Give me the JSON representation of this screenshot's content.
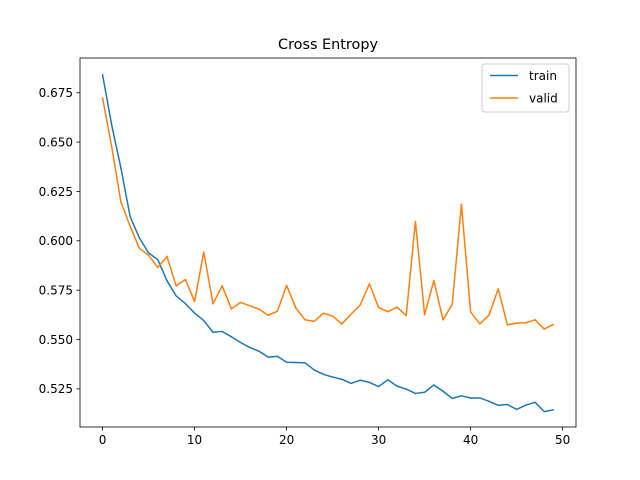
{
  "chart_data": {
    "type": "line",
    "title": "Cross Entropy",
    "xlabel": "",
    "ylabel": "",
    "xlim": [
      -2.45,
      51.45
    ],
    "ylim": [
      0.5057,
      0.6926
    ],
    "xticks": [
      0,
      10,
      20,
      30,
      40,
      50
    ],
    "yticks": [
      0.525,
      0.55,
      0.575,
      0.6,
      0.625,
      0.65,
      0.675
    ],
    "xtick_labels": [
      "0",
      "10",
      "20",
      "30",
      "40",
      "50"
    ],
    "ytick_labels": [
      "0.525",
      "0.550",
      "0.575",
      "0.600",
      "0.625",
      "0.650",
      "0.675"
    ],
    "grid": false,
    "legend": "top-right",
    "x": [
      0,
      1,
      2,
      3,
      4,
      5,
      6,
      7,
      8,
      9,
      10,
      11,
      12,
      13,
      14,
      15,
      16,
      17,
      18,
      19,
      20,
      21,
      22,
      23,
      24,
      25,
      26,
      27,
      28,
      29,
      30,
      31,
      32,
      33,
      34,
      35,
      36,
      37,
      38,
      39,
      40,
      41,
      42,
      43,
      44,
      45,
      46,
      47,
      48,
      49
    ],
    "series": [
      {
        "name": "train",
        "color": "#1f77b4",
        "values": [
          0.6842,
          0.6585,
          0.6368,
          0.6123,
          0.6015,
          0.5939,
          0.5905,
          0.5798,
          0.5721,
          0.5682,
          0.5634,
          0.5596,
          0.5537,
          0.5541,
          0.5514,
          0.5485,
          0.546,
          0.5441,
          0.5411,
          0.5415,
          0.5385,
          0.5384,
          0.5382,
          0.5346,
          0.5324,
          0.531,
          0.5299,
          0.5278,
          0.5294,
          0.5283,
          0.5262,
          0.5296,
          0.5264,
          0.5249,
          0.5227,
          0.5233,
          0.527,
          0.5238,
          0.5202,
          0.5215,
          0.5204,
          0.5204,
          0.5187,
          0.5167,
          0.5171,
          0.5146,
          0.5168,
          0.5182,
          0.5135,
          0.5144
        ]
      },
      {
        "name": "valid",
        "color": "#ff7f0e",
        "values": [
          0.6724,
          0.6475,
          0.6196,
          0.6074,
          0.5962,
          0.5927,
          0.5865,
          0.5921,
          0.5772,
          0.5804,
          0.5693,
          0.5943,
          0.5681,
          0.5772,
          0.5655,
          0.5688,
          0.5671,
          0.5654,
          0.5623,
          0.5643,
          0.5774,
          0.566,
          0.56,
          0.5592,
          0.5633,
          0.5619,
          0.5579,
          0.5628,
          0.5675,
          0.5782,
          0.5662,
          0.5641,
          0.5664,
          0.5622,
          0.6098,
          0.5626,
          0.5799,
          0.56,
          0.5678,
          0.6185,
          0.5639,
          0.5579,
          0.5624,
          0.5756,
          0.5574,
          0.5583,
          0.5585,
          0.56,
          0.5553,
          0.5577
        ]
      }
    ]
  }
}
